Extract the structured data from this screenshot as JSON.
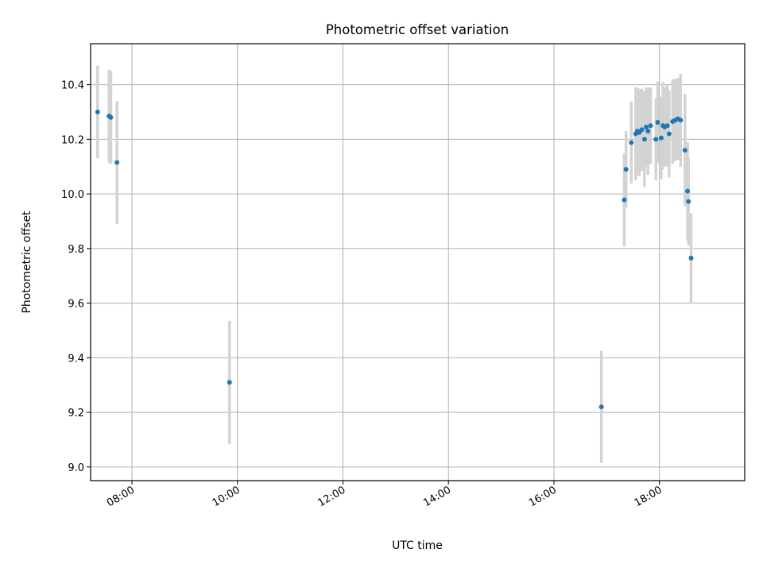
{
  "chart_data": {
    "type": "scatter",
    "title": "Photometric offset variation",
    "xlabel": "UTC time",
    "ylabel": "Photometric offset",
    "x_tick_labels": [
      "08:00",
      "10:00",
      "12:00",
      "14:00",
      "16:00",
      "18:00"
    ],
    "y_tick_labels": [
      "9.0",
      "9.2",
      "9.4",
      "9.6",
      "9.8",
      "10.0",
      "10.2",
      "10.4"
    ],
    "xlim": [
      "07:13",
      "19:37"
    ],
    "ylim": [
      8.95,
      10.55
    ],
    "grid": true,
    "colors": {
      "marker": "#1f77b4",
      "errorbar": "#d3d3d3",
      "grid": "#b0b0b0"
    },
    "points": [
      {
        "x": "07:21",
        "y": 10.3,
        "err": 0.17
      },
      {
        "x": "07:34",
        "y": 10.285,
        "err": 0.17
      },
      {
        "x": "07:36",
        "y": 10.28,
        "err": 0.17
      },
      {
        "x": "07:43",
        "y": 10.115,
        "err": 0.225
      },
      {
        "x": "09:51",
        "y": 9.31,
        "err": 0.225
      },
      {
        "x": "16:54",
        "y": 9.22,
        "err": 0.205
      },
      {
        "x": "17:20",
        "y": 9.978,
        "err": 0.17
      },
      {
        "x": "17:22",
        "y": 10.09,
        "err": 0.14
      },
      {
        "x": "17:28",
        "y": 10.188,
        "err": 0.15
      },
      {
        "x": "17:33",
        "y": 10.22,
        "err": 0.17
      },
      {
        "x": "17:35",
        "y": 10.23,
        "err": 0.16
      },
      {
        "x": "17:37",
        "y": 10.225,
        "err": 0.16
      },
      {
        "x": "17:40",
        "y": 10.235,
        "err": 0.15
      },
      {
        "x": "17:43",
        "y": 10.2,
        "err": 0.175
      },
      {
        "x": "17:45",
        "y": 10.245,
        "err": 0.145
      },
      {
        "x": "17:47",
        "y": 10.23,
        "err": 0.16
      },
      {
        "x": "17:50",
        "y": 10.25,
        "err": 0.14
      },
      {
        "x": "17:56",
        "y": 10.2,
        "err": 0.15
      },
      {
        "x": "17:58",
        "y": 10.262,
        "err": 0.15
      },
      {
        "x": "18:02",
        "y": 10.205,
        "err": 0.15
      },
      {
        "x": "18:04",
        "y": 10.25,
        "err": 0.16
      },
      {
        "x": "18:06",
        "y": 10.245,
        "err": 0.145
      },
      {
        "x": "18:09",
        "y": 10.25,
        "err": 0.15
      },
      {
        "x": "18:11",
        "y": 10.22,
        "err": 0.16
      },
      {
        "x": "18:15",
        "y": 10.265,
        "err": 0.155
      },
      {
        "x": "18:18",
        "y": 10.27,
        "err": 0.15
      },
      {
        "x": "18:21",
        "y": 10.275,
        "err": 0.15
      },
      {
        "x": "18:24",
        "y": 10.27,
        "err": 0.17
      },
      {
        "x": "18:29",
        "y": 10.16,
        "err": 0.205
      },
      {
        "x": "18:32",
        "y": 10.01,
        "err": 0.18
      },
      {
        "x": "18:33",
        "y": 9.972,
        "err": 0.16
      },
      {
        "x": "18:36",
        "y": 9.765,
        "err": 0.165
      }
    ]
  }
}
